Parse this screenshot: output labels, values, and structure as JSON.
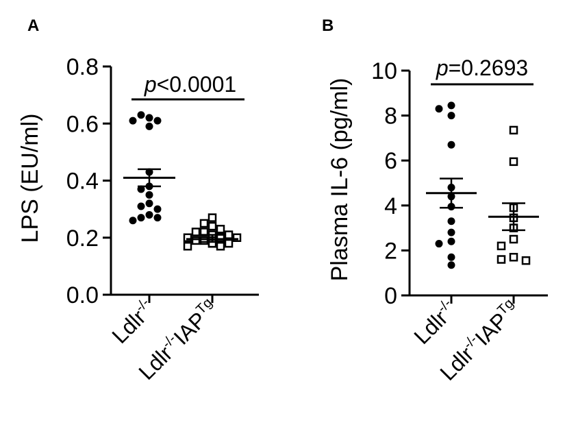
{
  "chart_data": [
    {
      "panel": "A",
      "type": "scatter",
      "ylabel": "LPS (EU/ml)",
      "ylim": [
        0.0,
        0.8
      ],
      "yticks": [
        "0.0",
        "0.2",
        "0.4",
        "0.6",
        "0.8"
      ],
      "annotation": {
        "italic": "p",
        "text": "<0.0001"
      },
      "categories": [
        {
          "base": "Ldlr",
          "sup": "-/-",
          "tail": "",
          "tail_sup": ""
        },
        {
          "base": "Ldlr",
          "sup": "-/-",
          "tail": "IAP",
          "tail_sup": "Tg"
        }
      ],
      "series": [
        {
          "marker": "filled-circle",
          "values": [
            0.62,
            0.63,
            0.61,
            0.61,
            0.59,
            0.43,
            0.38,
            0.37,
            0.35,
            0.32,
            0.31,
            0.3,
            0.28,
            0.27,
            0.27,
            0.26
          ],
          "mean": 0.41,
          "sem_low": 0.38,
          "sem_high": 0.44
        },
        {
          "marker": "open-square",
          "values": [
            0.27,
            0.25,
            0.24,
            0.23,
            0.22,
            0.22,
            0.21,
            0.21,
            0.2,
            0.2,
            0.2,
            0.19,
            0.19,
            0.19,
            0.18,
            0.18,
            0.18,
            0.17,
            0.17
          ],
          "mean": 0.195,
          "sem_low": 0.185,
          "sem_high": 0.21
        }
      ]
    },
    {
      "panel": "B",
      "type": "scatter",
      "ylabel": "Plasma IL-6  (pg/ml)",
      "ylim": [
        0,
        10
      ],
      "yticks": [
        "0",
        "2",
        "4",
        "6",
        "8",
        "10"
      ],
      "annotation": {
        "italic": "p",
        "text": "=0.2693"
      },
      "categories": [
        {
          "base": "Ldlr",
          "sup": "-/-",
          "tail": "",
          "tail_sup": ""
        },
        {
          "base": "Ldlr",
          "sup": "-/-",
          "tail": "IAP",
          "tail_sup": "Tg"
        }
      ],
      "series": [
        {
          "marker": "filled-circle",
          "values": [
            8.45,
            8.3,
            8.0,
            6.7,
            4.8,
            4.4,
            3.95,
            3.3,
            2.8,
            2.4,
            2.3,
            1.7,
            1.35
          ],
          "mean": 4.55,
          "sem_low": 3.9,
          "sem_high": 5.2
        },
        {
          "marker": "open-square",
          "values": [
            7.35,
            5.95,
            3.9,
            3.45,
            3.0,
            2.5,
            2.2,
            1.7,
            1.6,
            1.55
          ],
          "mean": 3.5,
          "sem_low": 2.9,
          "sem_high": 4.1
        }
      ]
    }
  ]
}
